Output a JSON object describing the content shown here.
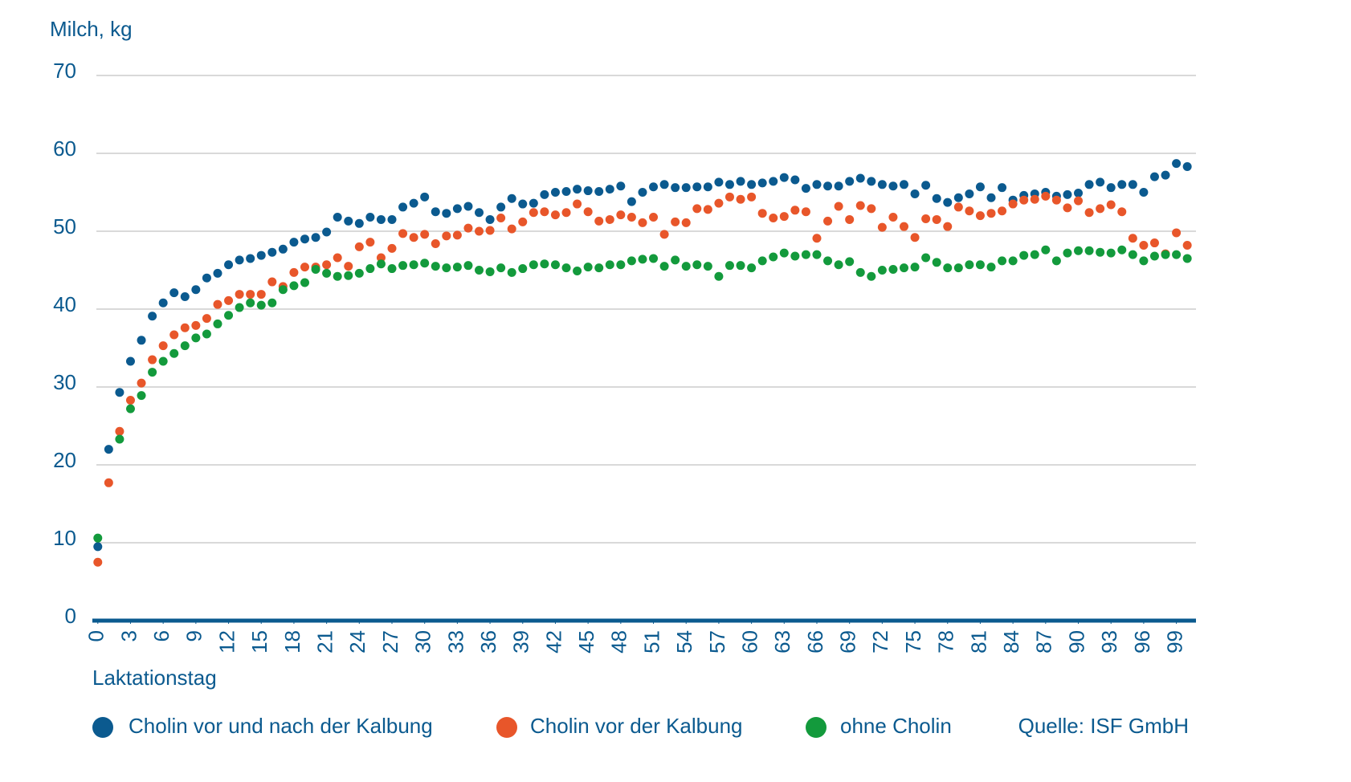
{
  "chart_data": {
    "type": "scatter",
    "y_label": "Milch, kg",
    "x_label": "Laktationstag",
    "source": "Quelle: ISF GmbH",
    "x": [
      0,
      1,
      2,
      3,
      4,
      5,
      6,
      7,
      8,
      9,
      10,
      11,
      12,
      13,
      14,
      15,
      16,
      17,
      18,
      19,
      20,
      21,
      22,
      23,
      24,
      25,
      26,
      27,
      28,
      29,
      30,
      31,
      32,
      33,
      34,
      35,
      36,
      37,
      38,
      39,
      40,
      41,
      42,
      43,
      44,
      45,
      46,
      47,
      48,
      49,
      50,
      51,
      52,
      53,
      54,
      55,
      56,
      57,
      58,
      59,
      60,
      61,
      62,
      63,
      64,
      65,
      66,
      67,
      68,
      69,
      70,
      71,
      72,
      73,
      74,
      75,
      76,
      77,
      78,
      79,
      80,
      81,
      82,
      83,
      84,
      85,
      86,
      87,
      88,
      89,
      90,
      91,
      92,
      93,
      94,
      95,
      96,
      97,
      98,
      99,
      100
    ],
    "series": [
      {
        "name": "Cholin vor und nach der Kalbung",
        "color": "#0b5a8f",
        "values": [
          9.5,
          22,
          29.3,
          33.3,
          36,
          39.1,
          40.8,
          42.1,
          41.6,
          42.5,
          44,
          44.6,
          45.7,
          46.3,
          46.5,
          46.9,
          47.3,
          47.7,
          48.6,
          49,
          49.2,
          49.9,
          51.8,
          51.3,
          51,
          51.8,
          51.5,
          51.5,
          53.1,
          53.6,
          54.4,
          52.5,
          52.3,
          52.9,
          53.2,
          52.4,
          51.5,
          53.1,
          54.2,
          53.5,
          53.6,
          54.7,
          55,
          55.1,
          55.4,
          55.2,
          55.1,
          55.4,
          55.8,
          53.8,
          55,
          55.7,
          56,
          55.6,
          55.6,
          55.7,
          55.7,
          56.3,
          56,
          56.4,
          56,
          56.2,
          56.4,
          56.9,
          56.6,
          55.5,
          56,
          55.8,
          55.8,
          56.4,
          56.8,
          56.4,
          56,
          55.8,
          56,
          54.8,
          55.9,
          54.2,
          53.7,
          54.3,
          54.8,
          55.7,
          54.3,
          55.6,
          54,
          54.6,
          54.8,
          55,
          54.5,
          54.7,
          54.9,
          56,
          56.3,
          55.6,
          56,
          56,
          55,
          57,
          57.2,
          58.7,
          58.3
        ]
      },
      {
        "name": "Cholin vor der Kalbung",
        "color": "#e8562a",
        "values": [
          7.5,
          17.7,
          24.3,
          28.3,
          30.5,
          33.5,
          35.3,
          36.7,
          37.6,
          37.9,
          38.8,
          40.6,
          41.1,
          41.9,
          41.9,
          41.9,
          43.5,
          42.9,
          44.7,
          45.4,
          45.4,
          45.7,
          46.6,
          45.5,
          48,
          48.6,
          46.6,
          47.8,
          49.7,
          49.2,
          49.6,
          48.4,
          49.4,
          49.5,
          50.4,
          50,
          50.1,
          51.7,
          50.3,
          51.2,
          52.4,
          52.5,
          52.1,
          52.4,
          53.5,
          52.5,
          51.3,
          51.5,
          52.1,
          51.8,
          51.1,
          51.8,
          49.6,
          51.2,
          51.1,
          52.9,
          52.8,
          53.6,
          54.4,
          54.1,
          54.4,
          52.3,
          51.7,
          51.9,
          52.7,
          52.5,
          49.1,
          51.3,
          53.2,
          51.5,
          53.3,
          52.9,
          50.5,
          51.8,
          50.6,
          49.2,
          51.6,
          51.5,
          50.6,
          53.1,
          52.6,
          52,
          52.3,
          52.6,
          53.5,
          54,
          54.1,
          54.5,
          54,
          53,
          53.9,
          52.4,
          52.9,
          53.4,
          52.5,
          49.1,
          48.2,
          48.5,
          47.1,
          49.8,
          48.2
        ]
      },
      {
        "name": "ohne Cholin",
        "color": "#139a3c",
        "values": [
          10.6,
          null,
          23.3,
          27.2,
          28.9,
          31.9,
          33.3,
          34.3,
          35.3,
          36.3,
          36.8,
          38.1,
          39.2,
          40.2,
          40.8,
          40.5,
          40.8,
          42.5,
          43,
          43.4,
          45.1,
          44.6,
          44.2,
          44.3,
          44.6,
          45.2,
          45.8,
          45.2,
          45.6,
          45.7,
          45.9,
          45.5,
          45.3,
          45.4,
          45.6,
          45,
          44.8,
          45.3,
          44.7,
          45.2,
          45.7,
          45.8,
          45.7,
          45.3,
          44.9,
          45.4,
          45.3,
          45.7,
          45.7,
          46.2,
          46.4,
          46.5,
          45.5,
          46.3,
          45.5,
          45.7,
          45.5,
          44.2,
          45.6,
          45.6,
          45.3,
          46.2,
          46.7,
          47.2,
          46.8,
          47,
          47,
          46.2,
          45.7,
          46.1,
          44.7,
          44.2,
          45,
          45.1,
          45.3,
          45.4,
          46.6,
          46,
          45.3,
          45.3,
          45.7,
          45.7,
          45.4,
          46.2,
          46.2,
          46.9,
          47,
          47.6,
          46.2,
          47.2,
          47.5,
          47.5,
          47.3,
          47.2,
          47.6,
          47,
          46.2,
          46.8,
          47,
          47,
          46.5
        ]
      }
    ],
    "xlim": [
      -0.5,
      100.8
    ],
    "ylim": [
      0,
      70
    ],
    "xticks": [
      0,
      3,
      6,
      9,
      12,
      15,
      18,
      21,
      24,
      27,
      30,
      33,
      36,
      39,
      42,
      45,
      48,
      51,
      54,
      57,
      60,
      63,
      66,
      69,
      72,
      75,
      78,
      81,
      84,
      87,
      90,
      93,
      96,
      99
    ],
    "yticks": [
      0,
      10,
      20,
      30,
      40,
      50,
      60,
      70
    ],
    "grid": true
  }
}
